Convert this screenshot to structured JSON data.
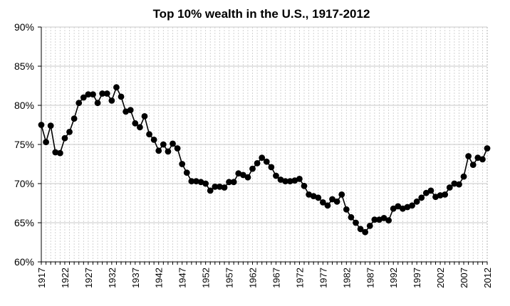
{
  "chart_data": {
    "type": "line",
    "title": "Top 10% wealth in the U.S., 1917-2012",
    "xlabel": "",
    "ylabel": "",
    "xlim": [
      1917,
      2012
    ],
    "ylim": [
      60,
      90
    ],
    "y_ticks": [
      60,
      65,
      70,
      75,
      80,
      85,
      90
    ],
    "y_tick_labels": [
      "60%",
      "65%",
      "70%",
      "75%",
      "80%",
      "85%",
      "90%"
    ],
    "x_ticks": [
      1917,
      1922,
      1927,
      1932,
      1937,
      1942,
      1947,
      1952,
      1957,
      1962,
      1967,
      1972,
      1977,
      1982,
      1987,
      1992,
      1997,
      2002,
      2007,
      2012
    ],
    "x_tick_labels": [
      "1917",
      "1922",
      "1927",
      "1932",
      "1937",
      "1942",
      "1947",
      "1952",
      "1957",
      "1962",
      "1967",
      "1972",
      "1977",
      "1982",
      "1987",
      "1992",
      "1997",
      "2002",
      "2007",
      "2012"
    ],
    "grid": {
      "vertical": "dashed",
      "horizontal": "solid"
    },
    "legend": "none",
    "series": [
      {
        "color": "#000000",
        "marker": "circle",
        "x": [
          1917,
          1918,
          1919,
          1920,
          1921,
          1922,
          1923,
          1924,
          1925,
          1926,
          1927,
          1928,
          1929,
          1930,
          1931,
          1932,
          1933,
          1934,
          1935,
          1936,
          1937,
          1938,
          1939,
          1940,
          1941,
          1942,
          1943,
          1944,
          1945,
          1946,
          1947,
          1948,
          1949,
          1950,
          1951,
          1952,
          1953,
          1954,
          1955,
          1956,
          1957,
          1958,
          1959,
          1960,
          1961,
          1962,
          1963,
          1964,
          1965,
          1966,
          1967,
          1968,
          1969,
          1970,
          1971,
          1972,
          1973,
          1974,
          1975,
          1976,
          1977,
          1978,
          1979,
          1980,
          1981,
          1982,
          1983,
          1984,
          1985,
          1986,
          1987,
          1988,
          1989,
          1990,
          1991,
          1992,
          1993,
          1994,
          1995,
          1996,
          1997,
          1998,
          1999,
          2000,
          2001,
          2002,
          2003,
          2004,
          2005,
          2006,
          2007,
          2008,
          2009,
          2010,
          2011,
          2012
        ],
        "y": [
          77.5,
          75.3,
          77.4,
          74.0,
          73.9,
          75.8,
          76.6,
          78.3,
          80.3,
          81.0,
          81.4,
          81.4,
          80.3,
          81.5,
          81.5,
          80.6,
          82.3,
          81.1,
          79.2,
          79.4,
          77.7,
          77.2,
          78.6,
          76.3,
          75.6,
          74.2,
          75.0,
          74.1,
          75.1,
          74.5,
          72.5,
          71.4,
          70.3,
          70.3,
          70.2,
          70.0,
          69.1,
          69.6,
          69.6,
          69.5,
          70.2,
          70.2,
          71.3,
          71.1,
          70.8,
          71.9,
          72.6,
          73.3,
          72.8,
          72.1,
          71.0,
          70.5,
          70.3,
          70.3,
          70.4,
          70.6,
          69.7,
          68.6,
          68.4,
          68.2,
          67.6,
          67.2,
          68.0,
          67.7,
          68.6,
          66.7,
          65.7,
          65.0,
          64.2,
          63.8,
          64.6,
          65.4,
          65.4,
          65.6,
          65.3,
          66.8,
          67.1,
          66.8,
          67.0,
          67.2,
          67.7,
          68.2,
          68.8,
          69.1,
          68.3,
          68.5,
          68.6,
          69.5,
          70.0,
          69.9,
          70.9,
          73.5,
          72.4,
          73.3,
          73.1,
          74.5
        ]
      }
    ]
  }
}
